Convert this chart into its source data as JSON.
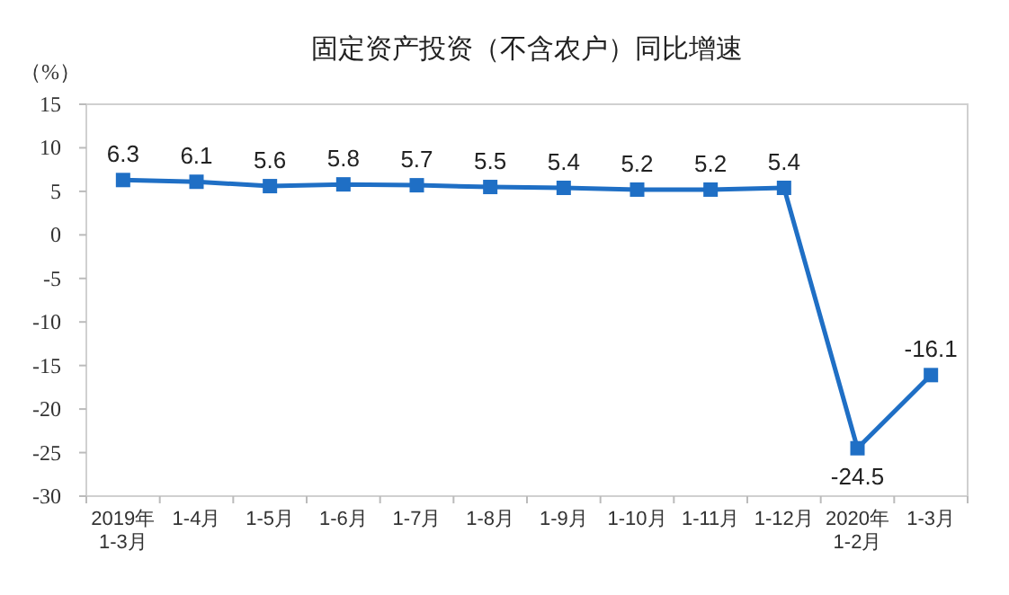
{
  "chart_data": {
    "type": "line",
    "title": "固定资产投资（不含农户）同比增速",
    "ylabel": "（%）",
    "categories": [
      "2019年\n1-3月",
      "1-4月",
      "1-5月",
      "1-6月",
      "1-7月",
      "1-8月",
      "1-9月",
      "1-10月",
      "1-11月",
      "1-12月",
      "2020年\n1-2月",
      "1-3月"
    ],
    "series": [
      {
        "color": "#1f6fc5",
        "values": [
          6.3,
          6.1,
          5.6,
          5.8,
          5.7,
          5.5,
          5.4,
          5.2,
          5.2,
          5.4,
          -24.5,
          -16.1
        ]
      }
    ],
    "ylim": [
      -30,
      15
    ],
    "yticks": [
      -30,
      -25,
      -20,
      -15,
      -10,
      -5,
      0,
      5,
      10,
      15
    ],
    "data_labels": true,
    "marker": "square",
    "grid": false
  }
}
